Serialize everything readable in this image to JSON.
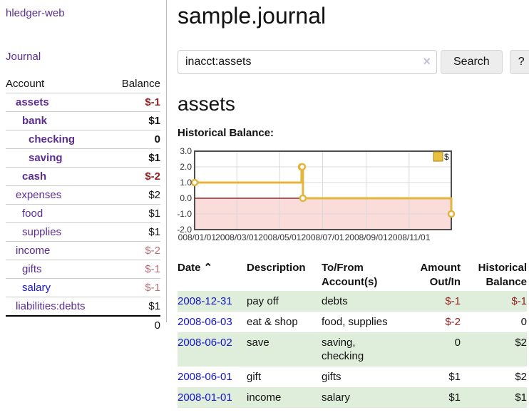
{
  "app": {
    "brand": "hledger-web"
  },
  "sidebar": {
    "journal_link": "Journal",
    "accounts": {
      "header_account": "Account",
      "header_balance": "Balance",
      "rows": [
        {
          "name": "assets",
          "balance": "$-1",
          "depth": 1,
          "in_account": true,
          "balance_tone": "neg-strong"
        },
        {
          "name": "bank",
          "balance": "$1",
          "depth": 2,
          "in_account": true,
          "balance_tone": ""
        },
        {
          "name": "checking",
          "balance": "0",
          "depth": 3,
          "in_account": true,
          "balance_tone": ""
        },
        {
          "name": "saving",
          "balance": "$1",
          "depth": 3,
          "in_account": true,
          "balance_tone": ""
        },
        {
          "name": "cash",
          "balance": "$-2",
          "depth": 2,
          "in_account": true,
          "balance_tone": "neg-strong"
        },
        {
          "name": "expenses",
          "balance": "$2",
          "depth": 1,
          "in_account": false,
          "balance_tone": ""
        },
        {
          "name": "food",
          "balance": "$1",
          "depth": 2,
          "in_account": false,
          "balance_tone": ""
        },
        {
          "name": "supplies",
          "balance": "$1",
          "depth": 2,
          "in_account": false,
          "balance_tone": ""
        },
        {
          "name": "income",
          "balance": "$-2",
          "depth": 1,
          "in_account": false,
          "balance_tone": "neg-muted"
        },
        {
          "name": "gifts",
          "balance": "$-1",
          "depth": 2,
          "in_account": false,
          "balance_tone": "neg-muted"
        },
        {
          "name": "salary",
          "balance": "$-1",
          "depth": 2,
          "in_account": false,
          "balance_tone": "neg-muted",
          "link_color": "#1515d0"
        },
        {
          "name": "liabilities:debts",
          "balance": "$1",
          "depth": 1,
          "in_account": false,
          "balance_tone": ""
        }
      ],
      "total": "0"
    }
  },
  "header": {
    "title": "sample.journal"
  },
  "search": {
    "value": "inacct:assets",
    "clear_icon": "×",
    "button_label": "Search",
    "help_label": "?"
  },
  "account_page": {
    "heading": "assets",
    "chart_label": "Historical Balance:"
  },
  "chart_data": {
    "type": "line",
    "title": "Historical Balance:",
    "step": "after",
    "series": [
      {
        "name": "$",
        "color": "#e3b53c",
        "points": [
          [
            "2008-01-01",
            1
          ],
          [
            "2008-06-01",
            2
          ],
          [
            "2008-06-02",
            2
          ],
          [
            "2008-06-03",
            0
          ],
          [
            "2008-12-31",
            -1
          ]
        ]
      }
    ],
    "xlim": [
      "2008-01-01",
      "2008-12-31"
    ],
    "ylim": [
      -2,
      3
    ],
    "x_ticks": [
      "2008/01/01",
      "2008/03/01",
      "2008/05/01",
      "2008/07/01",
      "2008/09/01",
      "2008/11/01"
    ],
    "y_ticks": [
      3.0,
      2.0,
      1.0,
      0.0,
      -1.0,
      -2.0
    ],
    "grid": true,
    "legend_position": "top-right",
    "negative_region_color": "#fadcdb",
    "zero_line_color": "#8b0000",
    "border_color": "#4d4d4d",
    "grid_color": "#d9d9d9"
  },
  "register": {
    "sort_icon": "⌃",
    "columns": {
      "date": "Date",
      "description": "Description",
      "account": "To/From Account(s)",
      "amount": "Amount Out/In",
      "balance": "Historical Balance"
    },
    "rows": [
      {
        "date": "2008-12-31",
        "description": "pay off",
        "accounts": "debts",
        "amount": "$-1",
        "balance": "$-1"
      },
      {
        "date": "2008-06-03",
        "description": "eat & shop",
        "accounts": "food, supplies",
        "amount": "$-2",
        "balance": "0"
      },
      {
        "date": "2008-06-02",
        "description": "save",
        "accounts": "saving, checking",
        "amount": "0",
        "balance": "$2"
      },
      {
        "date": "2008-06-01",
        "description": "gift",
        "accounts": "gifts",
        "amount": "$1",
        "balance": "$2"
      },
      {
        "date": "2008-01-01",
        "description": "income",
        "accounts": "salary",
        "amount": "$1",
        "balance": "$1"
      }
    ]
  }
}
